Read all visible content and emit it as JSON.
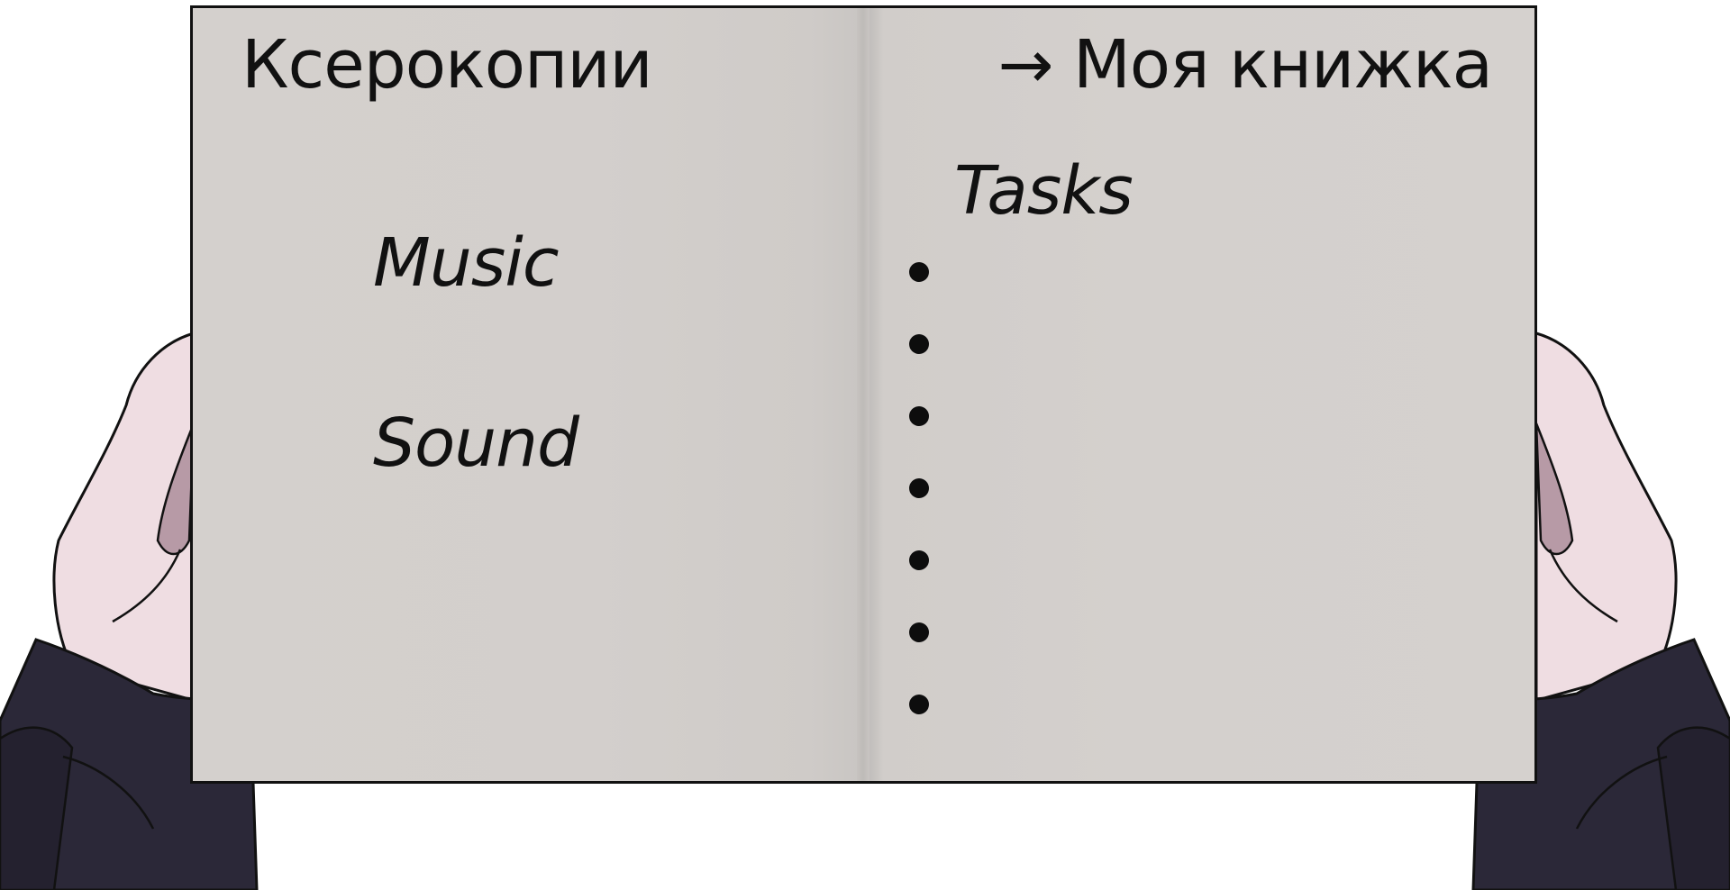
{
  "book": {
    "nav_current": "Ксерокопии",
    "nav_link": "→ Моя книжка",
    "left_page": {
      "items": [
        {
          "label": "Music"
        },
        {
          "label": "Sound"
        }
      ]
    },
    "right_page": {
      "title": "Tasks",
      "tasks": [
        "",
        "",
        "",
        "",
        "",
        "",
        ""
      ]
    }
  },
  "colors": {
    "page": "#d4d0cd",
    "ink": "#111111",
    "skin": "#efdbe0",
    "sleeve": "#2b2838",
    "nail_left": "#ee6f86",
    "nail_right": "#3a2f45"
  },
  "icons": {
    "left_hand": "hand-holding-book-icon",
    "right_hand": "hand-holding-book-icon"
  }
}
